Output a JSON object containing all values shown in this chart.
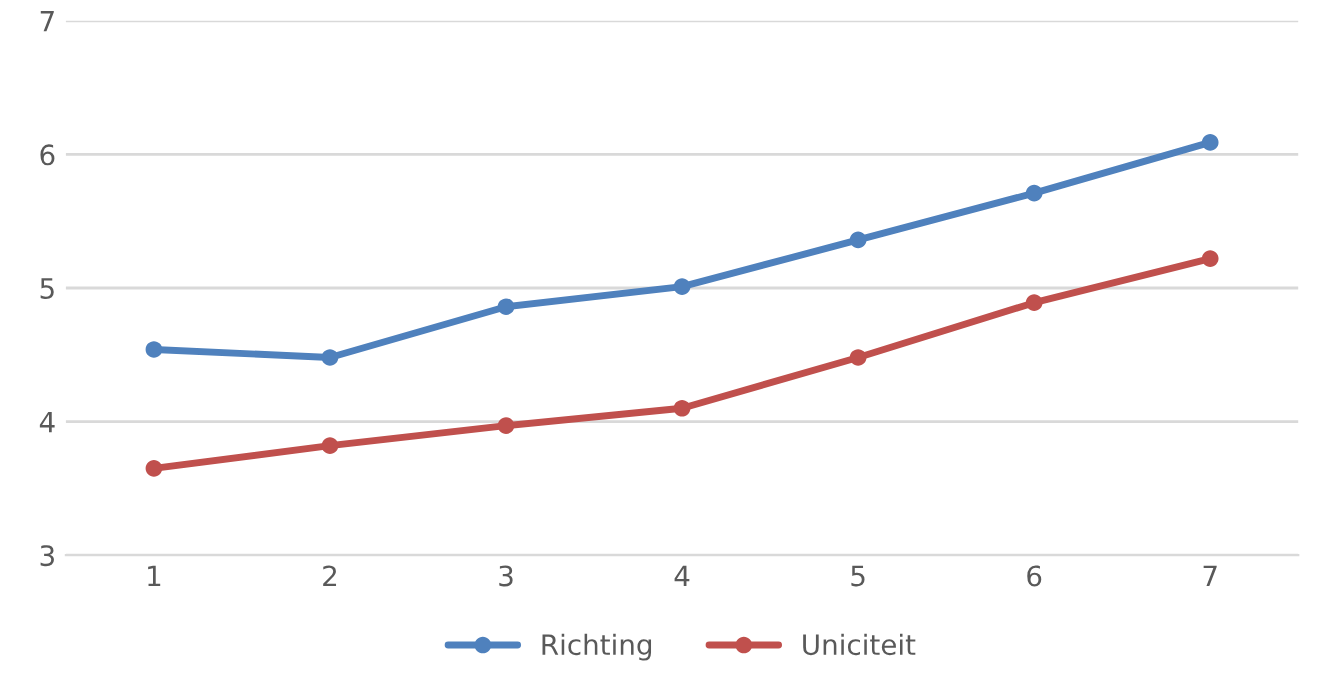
{
  "chart_data": {
    "type": "line",
    "categories": [
      "1",
      "2",
      "3",
      "4",
      "5",
      "6",
      "7"
    ],
    "series": [
      {
        "name": "Richting",
        "color": "#4f81bd",
        "values": [
          4.54,
          4.48,
          4.86,
          5.01,
          5.36,
          5.71,
          6.09
        ]
      },
      {
        "name": "Uniciteit",
        "color": "#c0504d",
        "values": [
          3.65,
          3.82,
          3.97,
          4.1,
          4.48,
          4.89,
          5.22
        ]
      }
    ],
    "ylim": [
      3,
      7
    ],
    "yticks": [
      3,
      4,
      5,
      6,
      7
    ],
    "grid": "y",
    "legend": "bottom",
    "marker": "circle",
    "line_style": "solid"
  }
}
